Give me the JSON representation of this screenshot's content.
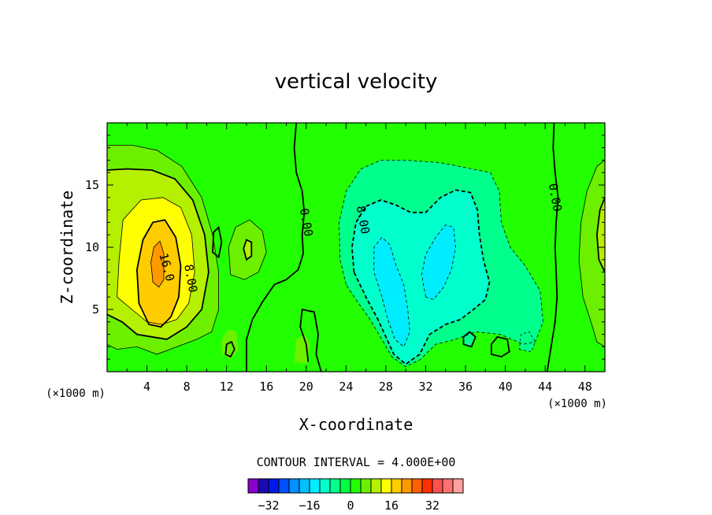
{
  "chart_data": {
    "type": "contour",
    "title": "vertical velocity",
    "xlabel": "X-coordinate",
    "ylabel": "Z-coordinate",
    "x_unit_label_left": "(×1000 m)",
    "x_unit_label_right": "(×1000 m)",
    "xlim": [
      0,
      50
    ],
    "ylim": [
      0,
      20
    ],
    "x_ticks": [
      4,
      8,
      12,
      16,
      20,
      24,
      28,
      32,
      36,
      40,
      44,
      48
    ],
    "y_ticks": [
      5,
      10,
      15
    ],
    "contour_labels": [
      {
        "text": "16.0",
        "x": 6.0,
        "y": 8.4
      },
      {
        "text": "8.00",
        "x": 8.4,
        "y": 7.5
      },
      {
        "text": "0.00",
        "x": 20.0,
        "y": 12.0
      },
      {
        "text": "8.00",
        "x": 25.7,
        "y": 12.2
      },
      {
        "text": "0.00",
        "x": 45.0,
        "y": 14.0
      }
    ],
    "contour_interval_text": "CONTOUR INTERVAL = 4.000E+00",
    "colorbar": {
      "ticks": [
        "-32",
        "-16",
        "0",
        "16",
        "32"
      ],
      "colors": [
        "#8800cc",
        "#1a0ab4",
        "#0018e8",
        "#0050ff",
        "#0090ff",
        "#00c0ff",
        "#00ecff",
        "#00ffcc",
        "#00ff8c",
        "#00ff40",
        "#22ff00",
        "#6cf000",
        "#b4f000",
        "#ffff00",
        "#ffcc00",
        "#ff9900",
        "#ff6000",
        "#ff3000",
        "#ff5050",
        "#ff7070",
        "#ffa0a0"
      ]
    }
  }
}
